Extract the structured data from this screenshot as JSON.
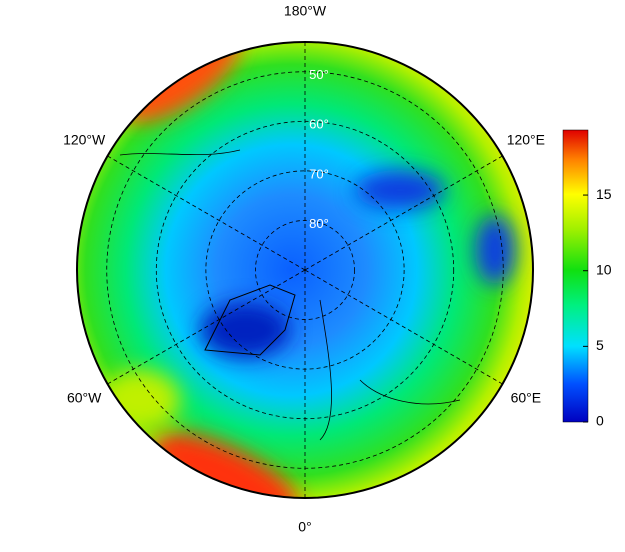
{
  "map": {
    "lon_labels": [
      {
        "value": 180,
        "label": "180°W"
      },
      {
        "value": -120,
        "label": "120°W"
      },
      {
        "value": -60,
        "label": "60°W"
      },
      {
        "value": 0,
        "label": "0°"
      },
      {
        "value": 60,
        "label": "60°E"
      },
      {
        "value": 120,
        "label": "120°E"
      }
    ],
    "lat_labels": [
      {
        "value": 50,
        "label": "50°"
      },
      {
        "value": 60,
        "label": "60°"
      },
      {
        "value": 70,
        "label": "70°"
      },
      {
        "value": 80,
        "label": "80°"
      }
    ],
    "lat_edge": 44
  },
  "colorbar": {
    "lim": [
      0,
      19.3
    ],
    "ticks": [
      0,
      5,
      10,
      15
    ]
  }
}
